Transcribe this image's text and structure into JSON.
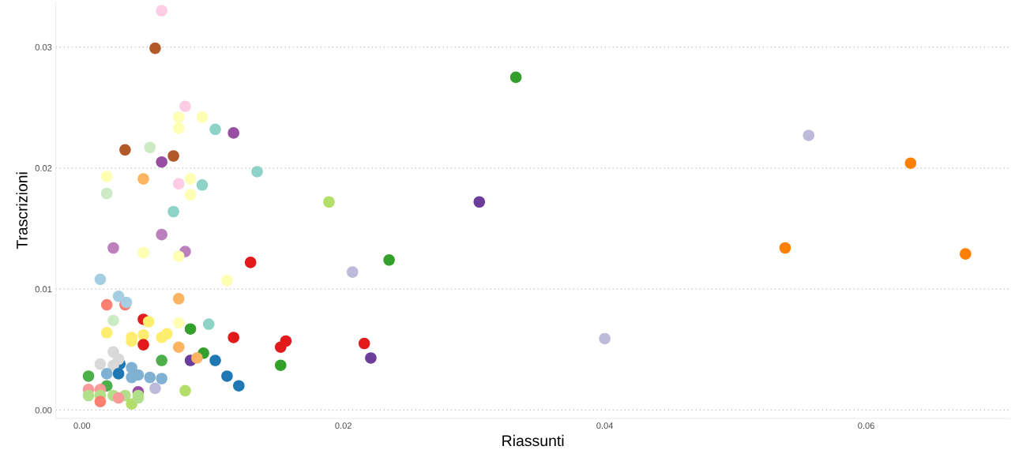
{
  "chart_data": {
    "type": "scatter",
    "xlabel": "Riassunti",
    "ylabel": "Trascrizioni",
    "x": [
      0.0061,
      0.0056,
      0.0079,
      0.0074,
      0.0092,
      0.0074,
      0.0102,
      0.0116,
      0.0033,
      0.0052,
      0.007,
      0.0061,
      0.0134,
      0.0019,
      0.0047,
      0.0074,
      0.0083,
      0.0092,
      0.0019,
      0.0083,
      0.007,
      0.0189,
      0.0304,
      0.0332,
      0.0556,
      0.0634,
      0.0538,
      0.0676,
      0.04,
      0.0207,
      0.0235,
      0.0216,
      0.0221,
      0.0156,
      0.0152,
      0.0152,
      0.0061,
      0.0024,
      0.0047,
      0.0079,
      0.0074,
      0.0129,
      0.0111,
      0.0014,
      0.0074,
      0.0028,
      0.0033,
      0.0034,
      0.0019,
      0.0024,
      0.0047,
      0.0051,
      0.0074,
      0.0083,
      0.0097,
      0.0019,
      0.0038,
      0.0038,
      0.0047,
      0.0061,
      0.0065,
      0.0047,
      0.0074,
      0.0116,
      0.0093,
      0.0083,
      0.0088,
      0.0102,
      0.0061,
      0.0029,
      0.0024,
      0.0028,
      0.0014,
      0.0024,
      0.0028,
      0.0038,
      0.0019,
      0.0038,
      0.0043,
      0.0052,
      0.0061,
      0.0111,
      0.012,
      0.0005,
      0.0019,
      0.0005,
      0.0014,
      0.0056,
      0.0043,
      0.0079,
      0.0005,
      0.0014,
      0.0024,
      0.0033,
      0.0043,
      0.0014,
      0.0028,
      0.0038,
      0.0043
    ],
    "values": [
      0.033,
      0.0299,
      0.0251,
      0.0242,
      0.0242,
      0.0233,
      0.0232,
      0.0229,
      0.0215,
      0.0217,
      0.021,
      0.0205,
      0.0197,
      0.0193,
      0.0191,
      0.0187,
      0.0191,
      0.0186,
      0.0179,
      0.0178,
      0.0164,
      0.0172,
      0.0172,
      0.0275,
      0.0227,
      0.0204,
      0.0134,
      0.0129,
      0.0059,
      0.0114,
      0.0124,
      0.0055,
      0.0043,
      0.0057,
      0.0052,
      0.0037,
      0.0145,
      0.0134,
      0.013,
      0.0131,
      0.0127,
      0.0122,
      0.0107,
      0.0108,
      0.0092,
      0.0094,
      0.0087,
      0.0089,
      0.0087,
      0.0074,
      0.0075,
      0.0073,
      0.0072,
      0.0067,
      0.0071,
      0.0064,
      0.006,
      0.0057,
      0.0062,
      0.006,
      0.0063,
      0.0054,
      0.0052,
      0.006,
      0.0047,
      0.0041,
      0.0043,
      0.0041,
      0.0041,
      0.0038,
      0.0048,
      0.0042,
      0.0038,
      0.0037,
      0.003,
      0.0035,
      0.003,
      0.0027,
      0.0029,
      0.0027,
      0.0026,
      0.0028,
      0.002,
      0.0028,
      0.002,
      0.0017,
      0.0017,
      0.0018,
      0.0015,
      0.0016,
      0.0012,
      0.0012,
      0.0012,
      0.0012,
      0.0012,
      0.0007,
      0.001,
      0.0005,
      0.001
    ],
    "colors": [
      "#fccde5",
      "#b15928",
      "#fccde5",
      "#ffffb3",
      "#ffffb3",
      "#ffffb3",
      "#8dd3c7",
      "#984ea3",
      "#b15928",
      "#ccebc5",
      "#b15928",
      "#984ea3",
      "#8dd3c7",
      "#ffffb3",
      "#fdb462",
      "#fccde5",
      "#ffffb3",
      "#8dd3c7",
      "#ccebc5",
      "#ffffb3",
      "#8dd3c7",
      "#b3de69",
      "#6a3d9a",
      "#33a02c",
      "#bebada",
      "#ff7f00",
      "#ff7f00",
      "#ff7f00",
      "#bebada",
      "#bebada",
      "#33a02c",
      "#e31a1c",
      "#6a3d9a",
      "#e31a1c",
      "#e31a1c",
      "#33a02c",
      "#bc80bd",
      "#bc80bd",
      "#ffffb3",
      "#bc80bd",
      "#ffffb3",
      "#e31a1c",
      "#ffffb3",
      "#a6cee3",
      "#fdb462",
      "#a6cee3",
      "#fb8072",
      "#a6cee3",
      "#fb8072",
      "#ccebc5",
      "#e31a1c",
      "#ffed6f",
      "#ffffb3",
      "#33a02c",
      "#8dd3c7",
      "#ffed6f",
      "#ffed6f",
      "#ffed6f",
      "#ffed6f",
      "#ffed6f",
      "#ffed6f",
      "#e31a1c",
      "#fdb462",
      "#e31a1c",
      "#33a02c",
      "#6a3d9a",
      "#fdb462",
      "#1f78b4",
      "#4daf4a",
      "#1f78b4",
      "#d9d9d9",
      "#d9d9d9",
      "#d9d9d9",
      "#d9d9d9",
      "#1f78b4",
      "#80b1d3",
      "#80b1d3",
      "#80b1d3",
      "#80b1d3",
      "#80b1d3",
      "#80b1d3",
      "#1f78b4",
      "#1f78b4",
      "#4daf4a",
      "#4daf4a",
      "#fb9a99",
      "#fb9a99",
      "#bebada",
      "#984ea3",
      "#b3de69",
      "#b2df8a",
      "#b2df8a",
      "#b2df8a",
      "#b2df8a",
      "#b2df8a",
      "#fb8072",
      "#fb9a99",
      "#b3de69",
      "#b2df8a"
    ],
    "marker": "circle",
    "xlim": [
      -0.002,
      0.071
    ],
    "ylim": [
      -0.0007,
      0.0337
    ],
    "xticks": [
      {
        "value": 0,
        "label": "0.00"
      },
      {
        "value": 0.02,
        "label": "0.02"
      },
      {
        "value": 0.04,
        "label": "0.04"
      },
      {
        "value": 0.06,
        "label": "0.06"
      }
    ],
    "yticks": [
      {
        "value": 0,
        "label": "0.00"
      },
      {
        "value": 0.01,
        "label": "0.01"
      },
      {
        "value": 0.02,
        "label": "0.02"
      },
      {
        "value": 0.03,
        "label": "0.03"
      }
    ],
    "grid": "y"
  }
}
